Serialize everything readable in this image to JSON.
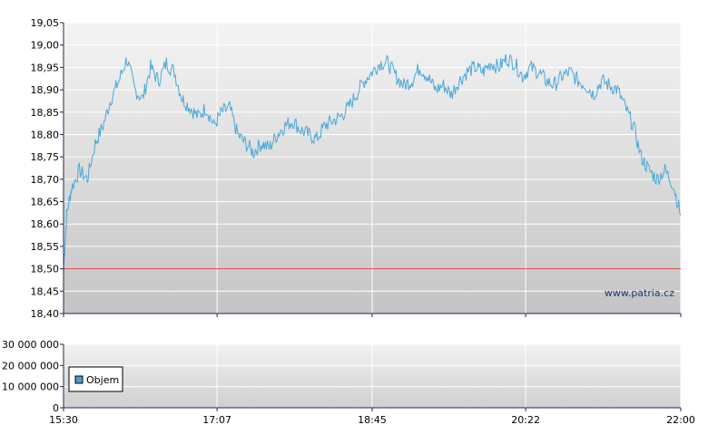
{
  "watermark": "www.patria.cz",
  "legend_label": "Objem",
  "colors": {
    "price_line": "#4aa8d8",
    "reference_line": "#e04040",
    "grid": "#ffffff",
    "axis": "#1a2a5a",
    "legend_swatch": "#4a9ed0"
  },
  "chart_data": [
    {
      "type": "line",
      "name": "price",
      "title": "",
      "xlabel": "",
      "ylabel": "",
      "xlim": [
        "15:30",
        "22:00"
      ],
      "ylim": [
        18.4,
        19.05
      ],
      "x_ticks": [
        "15:30",
        "17:07",
        "18:45",
        "20:22",
        "22:00"
      ],
      "y_ticks": [
        "18,40",
        "18,45",
        "18,50",
        "18,55",
        "18,60",
        "18,65",
        "18,70",
        "18,75",
        "18,80",
        "18,85",
        "18,90",
        "18,95",
        "19,00",
        "19,05"
      ],
      "grid": true,
      "reference_line": 18.5,
      "series": [
        {
          "x": [
            "15:30",
            "15:32",
            "15:35",
            "15:40",
            "15:45",
            "15:50",
            "15:55",
            "16:00",
            "16:05",
            "16:10",
            "16:15",
            "16:20",
            "16:25",
            "16:30",
            "16:35",
            "16:40",
            "16:45",
            "16:50",
            "16:55",
            "17:00",
            "17:05",
            "17:10",
            "17:15",
            "17:20",
            "17:25",
            "17:30",
            "17:35",
            "17:40",
            "17:45",
            "17:50",
            "17:55",
            "18:00",
            "18:05",
            "18:10",
            "18:15",
            "18:20",
            "18:25",
            "18:30",
            "18:35",
            "18:40",
            "18:45",
            "18:50",
            "18:55",
            "19:00",
            "19:05",
            "19:10",
            "19:15",
            "19:20",
            "19:25",
            "19:30",
            "19:35",
            "19:40",
            "19:45",
            "19:50",
            "19:55",
            "20:00",
            "20:05",
            "20:10",
            "20:15",
            "20:20",
            "20:25",
            "20:30",
            "20:35",
            "20:40",
            "20:45",
            "20:50",
            "20:55",
            "21:00",
            "21:05",
            "21:10",
            "21:15",
            "21:20",
            "21:25",
            "21:30",
            "21:35",
            "21:40",
            "21:45",
            "21:50",
            "21:55",
            "22:00"
          ],
          "y": [
            18.5,
            18.62,
            18.68,
            18.72,
            18.7,
            18.78,
            18.82,
            18.88,
            18.92,
            18.97,
            18.9,
            18.88,
            18.95,
            18.92,
            18.96,
            18.94,
            18.88,
            18.86,
            18.84,
            18.86,
            18.82,
            18.85,
            18.86,
            18.8,
            18.78,
            18.76,
            18.78,
            18.77,
            18.8,
            18.82,
            18.83,
            18.81,
            18.8,
            18.79,
            18.82,
            18.83,
            18.84,
            18.86,
            18.89,
            18.92,
            18.94,
            18.96,
            18.96,
            18.93,
            18.91,
            18.92,
            18.95,
            18.93,
            18.9,
            18.91,
            18.89,
            18.92,
            18.94,
            18.95,
            18.94,
            18.96,
            18.95,
            18.97,
            18.96,
            18.93,
            18.95,
            18.94,
            18.92,
            18.91,
            18.93,
            18.94,
            18.92,
            18.91,
            18.89,
            18.92,
            18.91,
            18.9,
            18.86,
            18.82,
            18.75,
            18.72,
            18.7,
            18.72,
            18.69,
            18.62
          ]
        }
      ]
    },
    {
      "type": "bar",
      "name": "volume",
      "title": "",
      "xlabel": "",
      "ylabel": "",
      "ylim": [
        0,
        30000000
      ],
      "y_ticks": [
        "0",
        "10 000 000",
        "20 000 000",
        "30 000 000"
      ],
      "x_ticks": [
        "15:30",
        "17:07",
        "18:45",
        "20:22",
        "22:00"
      ],
      "grid": true,
      "legend": [
        "Objem"
      ],
      "legend_position": "bottom-left",
      "series": []
    }
  ]
}
